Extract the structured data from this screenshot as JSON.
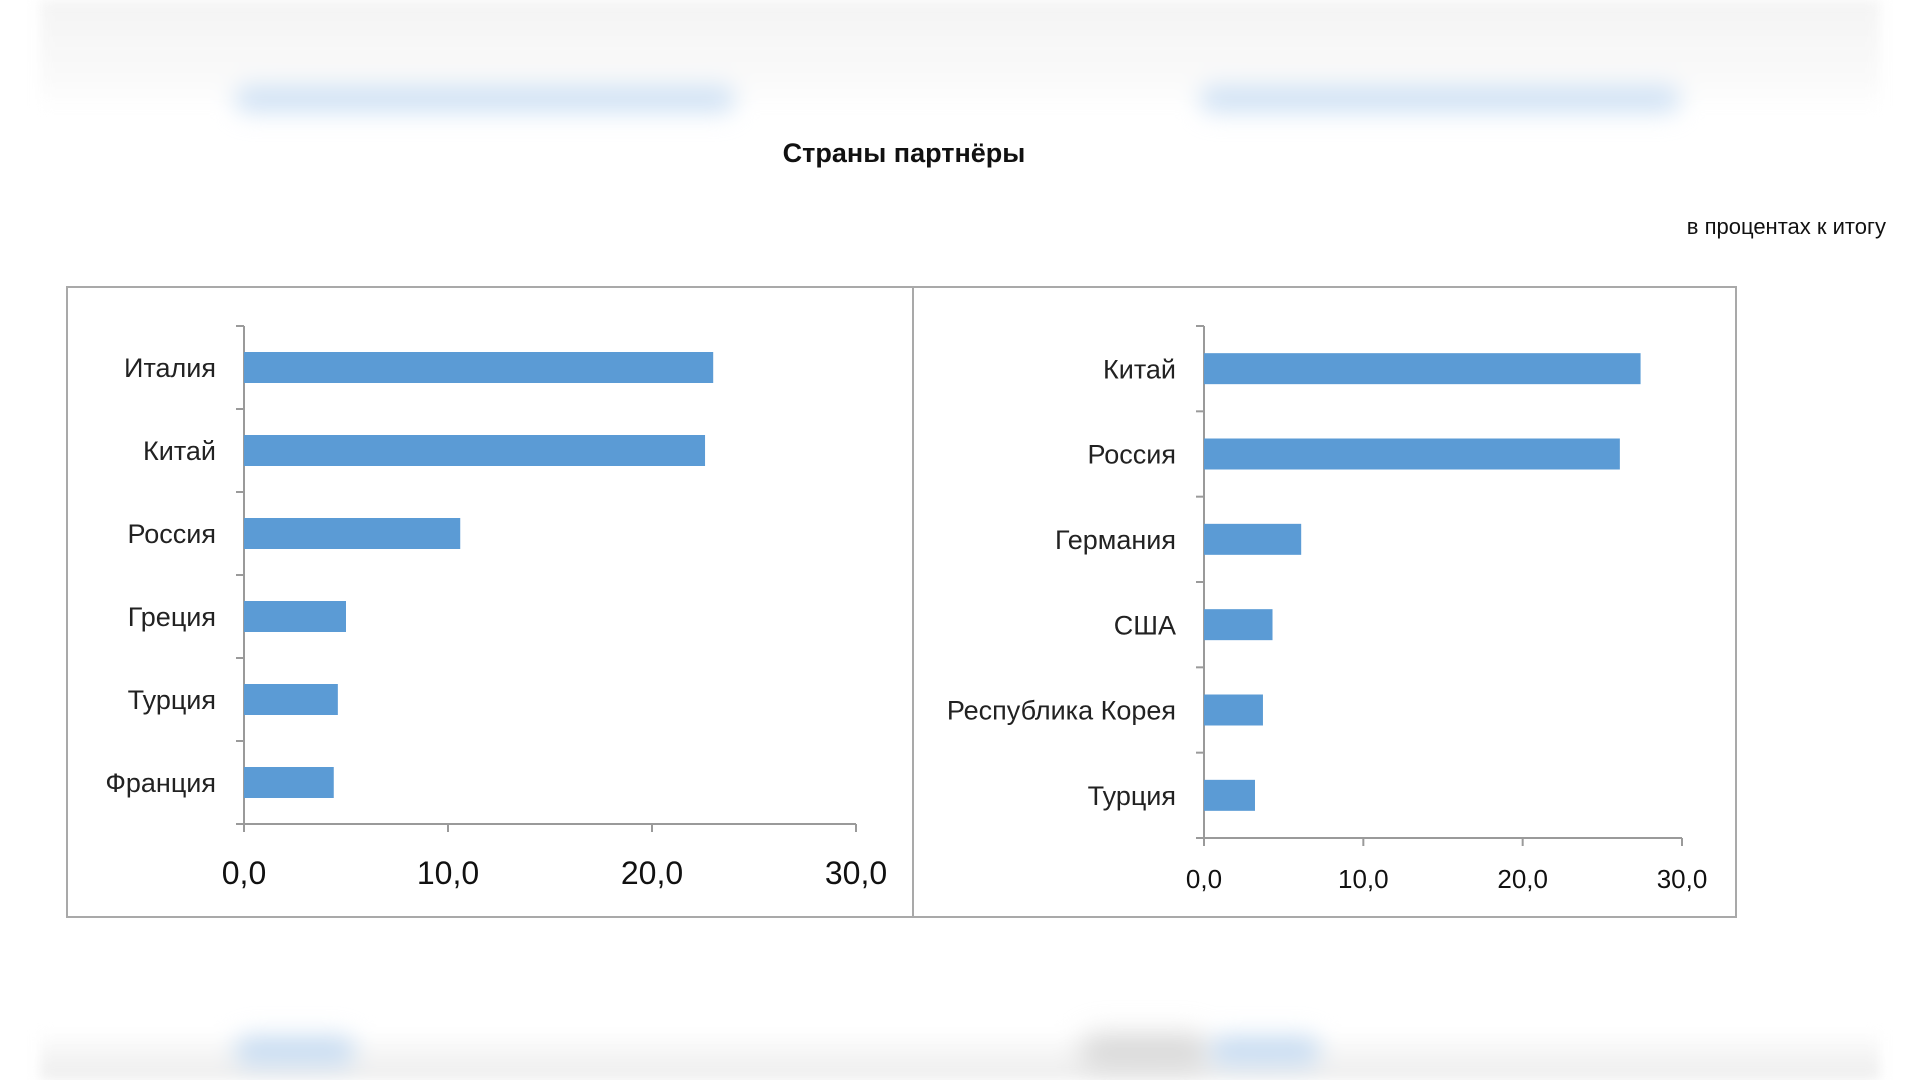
{
  "header": {
    "title": "Страны партнёры",
    "units": "в процентах к итогу"
  },
  "colors": {
    "bar": "#5b9bd5",
    "axis": "#9a9a9a",
    "frame": "#a9a9a9"
  },
  "chart_data": [
    {
      "type": "bar",
      "orientation": "horizontal",
      "categories": [
        "Италия",
        "Китай",
        "Россия",
        "Греция",
        "Турция",
        "Франция"
      ],
      "values": [
        23.0,
        22.6,
        10.6,
        5.0,
        4.6,
        4.4
      ],
      "xlim": [
        0,
        30
      ],
      "xticks": [
        "0,0",
        "10,0",
        "20,0",
        "30,0"
      ],
      "grid": false
    },
    {
      "type": "bar",
      "orientation": "horizontal",
      "categories": [
        "Китай",
        "Россия",
        "Германия",
        "США",
        "Республика Корея",
        "Турция"
      ],
      "values": [
        27.4,
        26.1,
        6.1,
        4.3,
        3.7,
        3.2
      ],
      "xlim": [
        0,
        30
      ],
      "xticks": [
        "0,0",
        "10,0",
        "20,0",
        "30,0"
      ],
      "grid": false
    }
  ]
}
